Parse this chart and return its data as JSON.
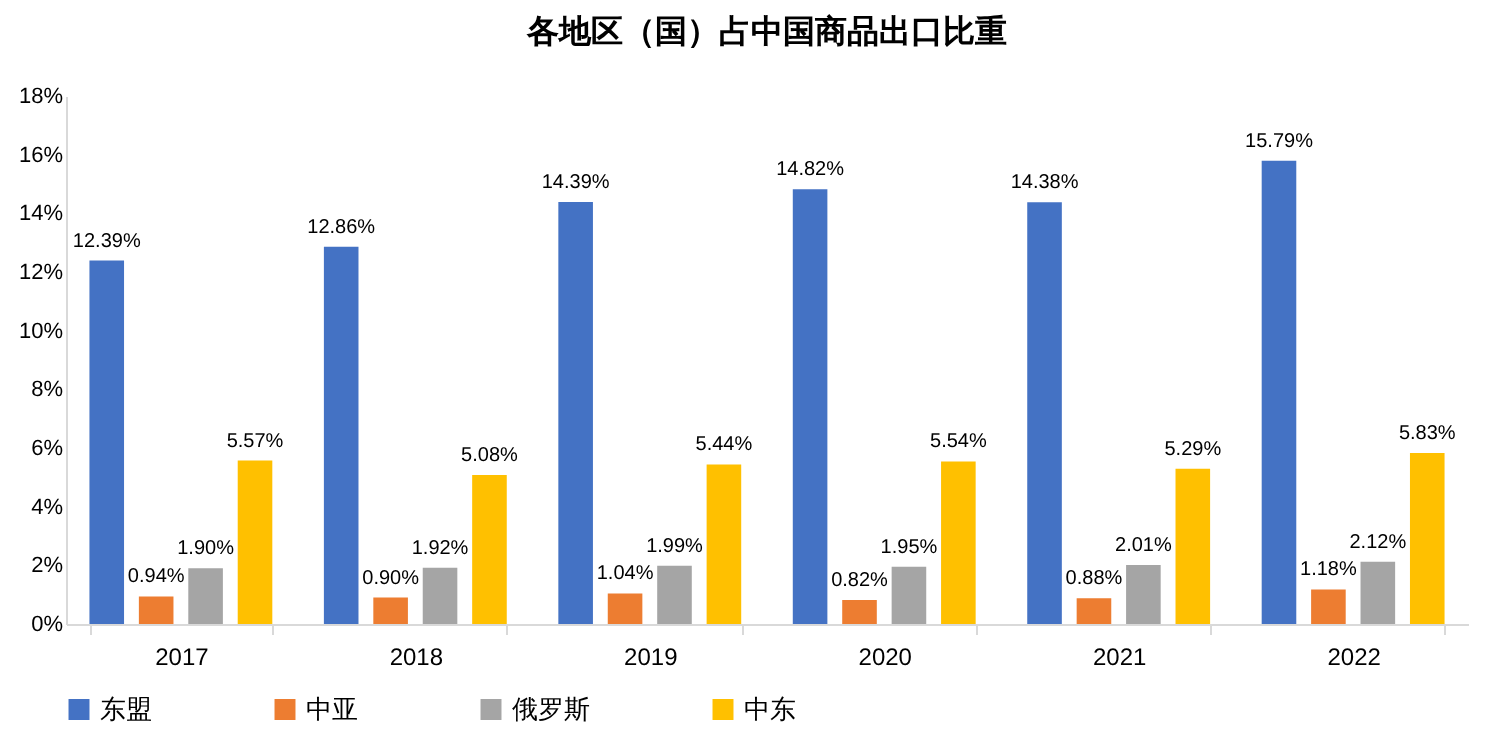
{
  "chart_data": {
    "type": "bar",
    "title": "各地区（国）占中国商品出口比重",
    "categories": [
      "2017",
      "2018",
      "2019",
      "2020",
      "2021",
      "2022"
    ],
    "series": [
      {
        "name": "东盟",
        "color": "#4472c4",
        "values": [
          12.39,
          12.86,
          14.39,
          14.82,
          14.38,
          15.79
        ],
        "value_labels": [
          "12.39%",
          "12.86%",
          "14.39%",
          "14.82%",
          "14.38%",
          "15.79%"
        ]
      },
      {
        "name": "中亚",
        "color": "#ed7d31",
        "values": [
          0.94,
          0.9,
          1.04,
          0.82,
          0.88,
          1.18
        ],
        "value_labels": [
          "0.94%",
          "0.90%",
          "1.04%",
          "0.82%",
          "0.88%",
          "1.18%"
        ]
      },
      {
        "name": "俄罗斯",
        "color": "#a5a5a5",
        "values": [
          1.9,
          1.92,
          1.99,
          1.95,
          2.01,
          2.12
        ],
        "value_labels": [
          "1.90%",
          "1.92%",
          "1.99%",
          "1.95%",
          "2.01%",
          "2.12%"
        ]
      },
      {
        "name": "中东",
        "color": "#ffc000",
        "values": [
          5.57,
          5.08,
          5.44,
          5.54,
          5.29,
          5.83
        ],
        "value_labels": [
          "5.57%",
          "5.08%",
          "5.44%",
          "5.54%",
          "5.29%",
          "5.83%"
        ]
      }
    ],
    "ylim": [
      0,
      18
    ],
    "yticks": [
      {
        "value": 0,
        "label": "0%"
      },
      {
        "value": 2,
        "label": "2%"
      },
      {
        "value": 4,
        "label": "4%"
      },
      {
        "value": 6,
        "label": "6%"
      },
      {
        "value": 8,
        "label": "8%"
      },
      {
        "value": 10,
        "label": "10%"
      },
      {
        "value": 12,
        "label": "12%"
      },
      {
        "value": 14,
        "label": "14%"
      },
      {
        "value": 16,
        "label": "16%"
      },
      {
        "value": 18,
        "label": "18%"
      }
    ],
    "grid": false,
    "legend": "bottom"
  }
}
